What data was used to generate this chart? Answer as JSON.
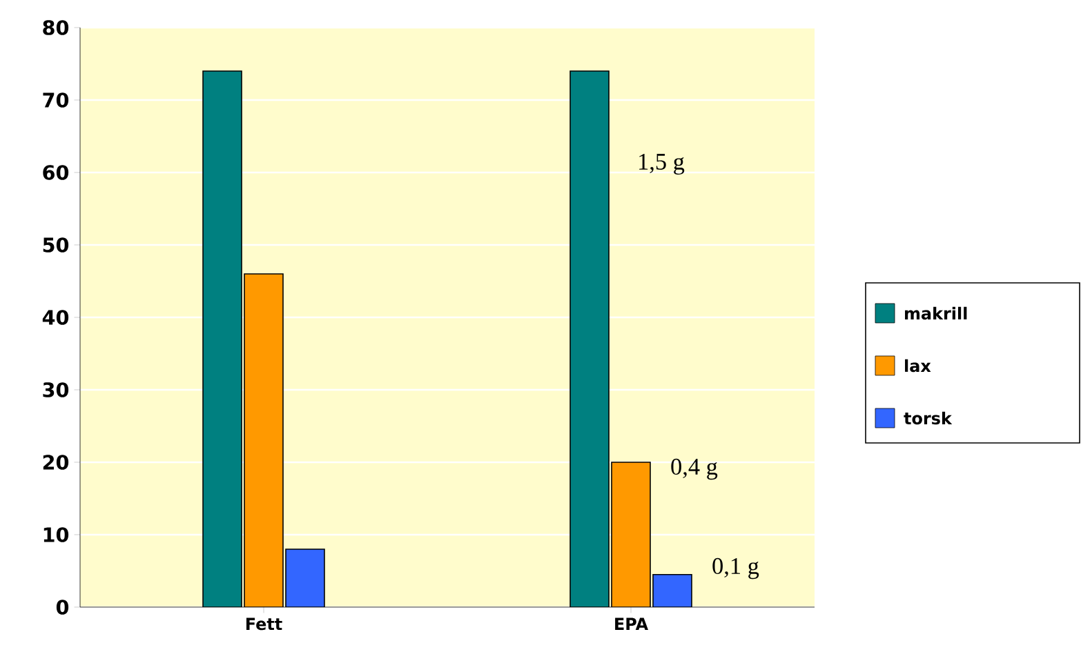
{
  "chart_data": {
    "type": "bar",
    "categories": [
      "Fett",
      "EPA"
    ],
    "series": [
      {
        "name": "makrill",
        "color": "#008080",
        "values": [
          74,
          74
        ]
      },
      {
        "name": "lax",
        "color": "#ff9900",
        "values": [
          46,
          20
        ]
      },
      {
        "name": "torsk",
        "color": "#3366ff",
        "values": [
          8,
          4.5
        ]
      }
    ],
    "ylim": [
      0,
      80
    ],
    "yticks": [
      0,
      10,
      20,
      30,
      40,
      50,
      60,
      70,
      80
    ],
    "grid": "y",
    "legend": "right",
    "annotations": [
      "1,5 g",
      "0,4 g",
      "0,1 g"
    ]
  }
}
